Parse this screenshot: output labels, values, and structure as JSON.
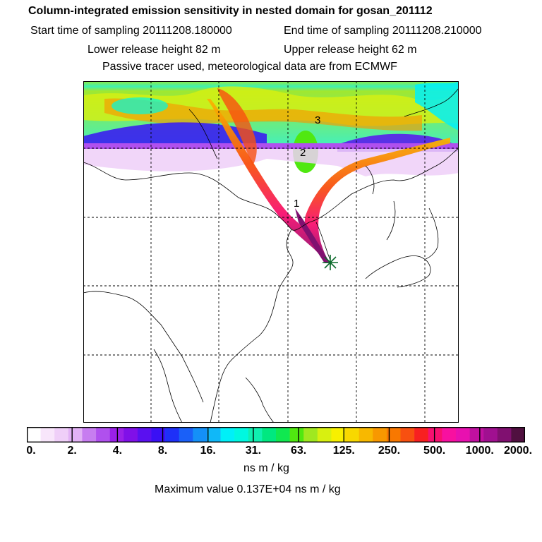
{
  "header": {
    "title": "Column-integrated emission sensitivity in nested domain for gosan_201112",
    "start_time": "Start time of sampling 20111208.180000",
    "end_time": "End time of sampling 20111208.210000",
    "lower_height": "Lower release height   82 m",
    "upper_height": "Upper release height   62 m",
    "tracer_note": "Passive tracer used, meteorological data are from ECMWF"
  },
  "map": {
    "plume_labels": [
      "1",
      "2",
      "3"
    ],
    "release_marker": "release-site-star"
  },
  "colorbar": {
    "tick_labels": [
      "0.",
      "2.",
      "4.",
      "8.",
      "16.",
      "31.",
      "63.",
      "125.",
      "250.",
      "500.",
      "1000.",
      "2000."
    ],
    "colors": [
      "#ffffff",
      "#f8e6fb",
      "#efcff8",
      "#e2b2f5",
      "#c77df0",
      "#b050ee",
      "#9a20e8",
      "#8010e8",
      "#5a10f0",
      "#3a10f5",
      "#1e30f8",
      "#1a60f8",
      "#1490f8",
      "#10b8f8",
      "#00f0f8",
      "#00f8e0",
      "#10f0b0",
      "#00e880",
      "#10e850",
      "#50e810",
      "#a0e820",
      "#d8f010",
      "#f8f000",
      "#f8d800",
      "#f8b800",
      "#f89800",
      "#f87800",
      "#f85010",
      "#f82020",
      "#f81070",
      "#f810a0",
      "#e810b0",
      "#c010a0",
      "#a01090",
      "#801070",
      "#501040"
    ],
    "units": "ns m / kg",
    "max_value": "Maximum value  0.137E+04 ns m / kg"
  }
}
